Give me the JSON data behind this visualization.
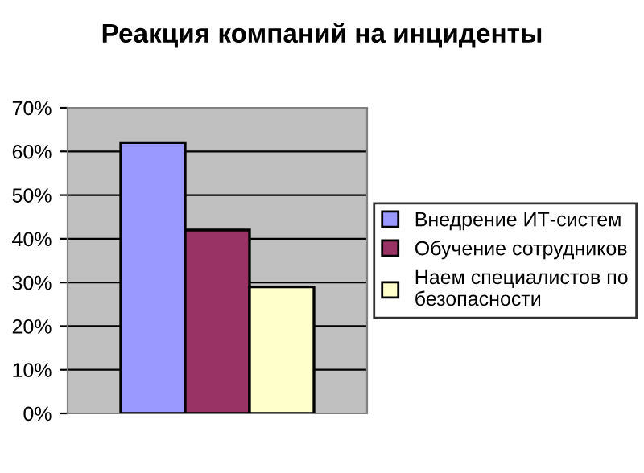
{
  "chart_data": {
    "type": "bar",
    "title": "Реакция компаний на инциденты",
    "categories": [
      null
    ],
    "series": [
      {
        "name": "Внедрение ИТ-систем",
        "color": "#9999ff",
        "values": [
          62
        ]
      },
      {
        "name": "Обучение сотрудников",
        "color": "#993366",
        "values": [
          42
        ]
      },
      {
        "name": "Наем специалистов по безопасности",
        "color": "#ffffcc",
        "values": [
          29
        ]
      }
    ],
    "ylim": [
      0,
      70
    ],
    "yticks": [
      {
        "value": 0,
        "label": "0%"
      },
      {
        "value": 10,
        "label": "10%"
      },
      {
        "value": 20,
        "label": "20%"
      },
      {
        "value": 30,
        "label": "30%"
      },
      {
        "value": 40,
        "label": "40%"
      },
      {
        "value": 50,
        "label": "50%"
      },
      {
        "value": 60,
        "label": "60%"
      },
      {
        "value": 70,
        "label": "70%"
      }
    ],
    "grid": "y",
    "legend": "right"
  }
}
